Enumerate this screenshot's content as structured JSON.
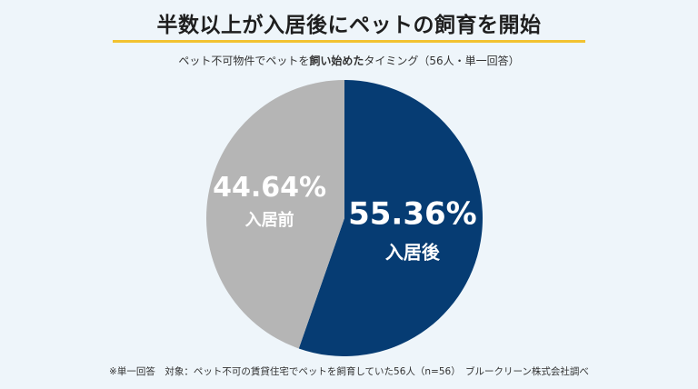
{
  "header": {
    "title": "半数以上が入居後にペットの飼育を開始",
    "subtitle_pre": "ペット不可物件でペットを",
    "subtitle_bold": "飼い始めた",
    "subtitle_post": "タイミング（56人・単一回答）"
  },
  "footnote": "※単一回答　対象：ペット不可の賃貸住宅でペットを飼育していた56人（n=56）　ブルークリーン株式会社調べ",
  "colors": {
    "primary": "#063c73",
    "secondary": "#b5b5b5",
    "accent": "#f2c230"
  },
  "chart_data": {
    "type": "pie",
    "title": "半数以上が入居後にペットの飼育を開始",
    "start": "12 o'clock, clockwise",
    "slices": [
      {
        "label": "入居後",
        "value": 55.36,
        "display": "55.36%",
        "color": "#063c73"
      },
      {
        "label": "入居前",
        "value": 44.64,
        "display": "44.64%",
        "color": "#b5b5b5"
      }
    ]
  }
}
